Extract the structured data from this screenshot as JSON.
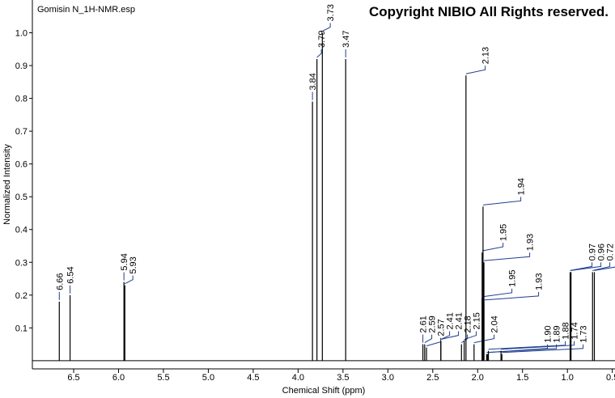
{
  "chart_data": {
    "type": "stem",
    "file_name": "Gomisin N_1H-NMR.esp",
    "copyright": "Copyright NIBIO All Rights reserved.",
    "x_label": "Chemical Shift (ppm)",
    "y_label": "Normalized Intensity",
    "xlim": [
      6.96,
      0.47
    ],
    "ylim": [
      -0.025,
      1.1
    ],
    "xticks": [
      6.5,
      {
        "value": 6,
        "label": "6.0"
      },
      5.5,
      {
        "value": 5,
        "label": "5.0"
      },
      4.5,
      {
        "value": 4,
        "label": "4.0"
      },
      3.5,
      {
        "value": 3,
        "label": "3.0"
      },
      2.5,
      {
        "value": 2,
        "label": "2.0"
      },
      1.5,
      {
        "value": 1,
        "label": "1.0"
      },
      0.5
    ],
    "yticks": [
      0.1,
      0.2,
      0.3,
      0.4,
      0.5,
      0.6,
      0.7,
      0.8,
      0.9,
      {
        "value": 1,
        "label": "1.0"
      }
    ],
    "color": "#000000",
    "label_color": "#1f3f8f",
    "peaks": {
      "x": [
        6.66,
        6.54,
        5.94,
        5.93,
        3.84,
        3.79,
        3.73,
        3.47,
        2.61,
        2.59,
        2.57,
        2.41,
        2.41,
        2.18,
        2.15,
        2.13,
        2.04,
        1.95,
        1.95,
        1.94,
        1.93,
        1.93,
        1.9,
        1.89,
        1.88,
        1.74,
        1.73,
        0.97,
        0.96,
        0.72,
        0.7
      ],
      "values": [
        0.18,
        0.2,
        0.24,
        0.23,
        0.79,
        0.92,
        1.0,
        0.92,
        0.05,
        0.05,
        0.04,
        0.06,
        0.06,
        0.05,
        0.06,
        0.87,
        0.05,
        0.33,
        0.19,
        0.47,
        0.3,
        0.18,
        0.02,
        0.02,
        0.03,
        0.03,
        0.02,
        0.27,
        0.27,
        0.27,
        0.27
      ],
      "labels": [
        "6.66",
        "6.54",
        "5.94",
        "5.93",
        "3.84",
        "3.79",
        "3.73",
        "3.47",
        "2.61",
        "2.59",
        "2.57",
        "2.41",
        "2.41",
        "2.18",
        "2.15",
        "2.13",
        "2.04",
        "1.95",
        "1.95",
        "1.94",
        "1.93",
        "1.93",
        "1.90",
        "1.89",
        "1.88",
        "1.74",
        "1.73",
        "0.97",
        "0.96",
        "0.72",
        "0.70"
      ]
    }
  }
}
